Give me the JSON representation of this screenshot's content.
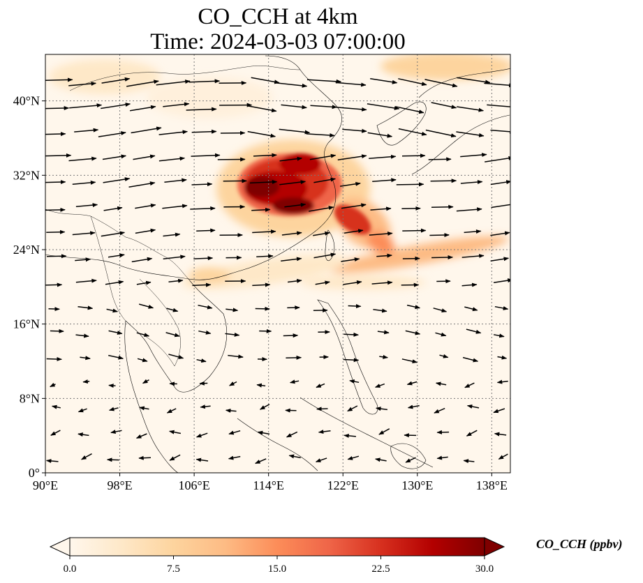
{
  "title": {
    "line1": "CO_CCH at 4km",
    "line2": "Time: 2024-03-03 07:00:00"
  },
  "map": {
    "extent": {
      "lon": [
        90,
        140
      ],
      "lat": [
        0,
        45
      ]
    },
    "lon_ticks": [
      {
        "value": 90,
        "label": "90°E"
      },
      {
        "value": 98,
        "label": "98°E"
      },
      {
        "value": 106,
        "label": "106°E"
      },
      {
        "value": 114,
        "label": "114°E"
      },
      {
        "value": 122,
        "label": "122°E"
      },
      {
        "value": 130,
        "label": "130°E"
      },
      {
        "value": 138,
        "label": "138°E"
      }
    ],
    "lat_ticks": [
      {
        "value": 0,
        "label": "0°"
      },
      {
        "value": 8,
        "label": "8°N"
      },
      {
        "value": 16,
        "label": "16°N"
      },
      {
        "value": 24,
        "label": "24°N"
      },
      {
        "value": 32,
        "label": "32°N"
      },
      {
        "value": 40,
        "label": "40°N"
      }
    ],
    "gridlines": true,
    "colormap": "OrRd",
    "colors": {
      "low": "#fff7ec",
      "mid": "#fc8d59",
      "high": "#7f0000"
    }
  },
  "colorbar": {
    "label": "CO_CCH (ppbv)",
    "min": 0,
    "max": 30,
    "extend": "both",
    "ticks": [
      "0.0",
      "7.5",
      "15.0",
      "22.5",
      "30.0"
    ]
  }
}
